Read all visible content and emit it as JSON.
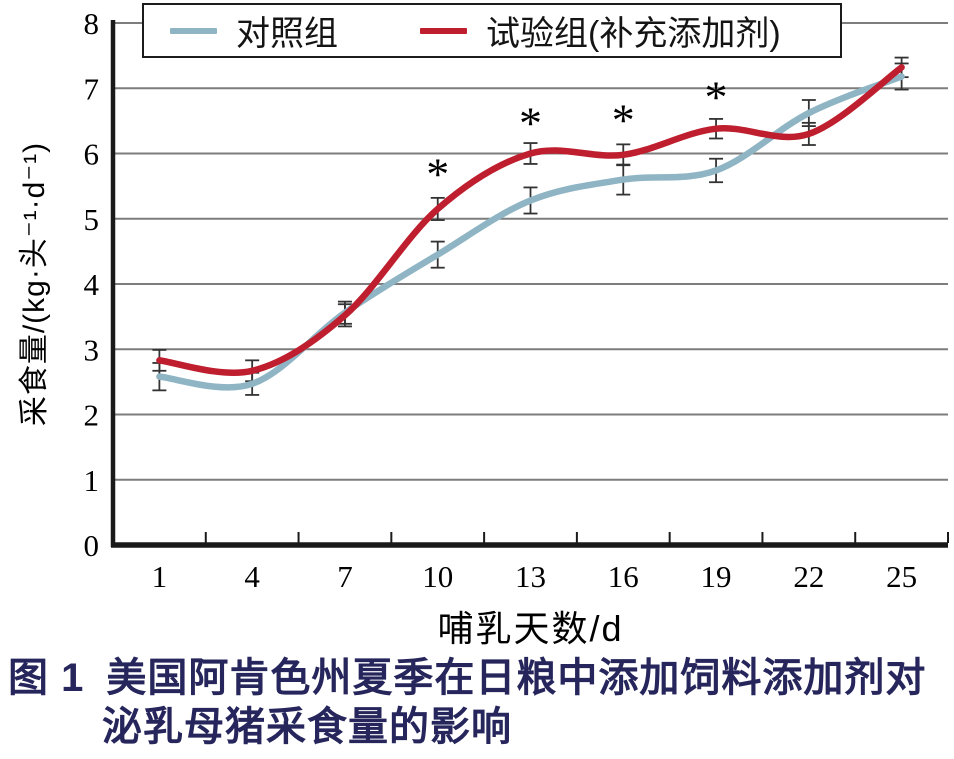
{
  "caption": {
    "prefix": "图 1",
    "line1": "美国阿肯色州夏季在日粮中添加饲料添加剂对",
    "line2": "泌乳母猪采食量的影响"
  },
  "style": {
    "axis_color": "#1a1a1a",
    "grid_color": "#7d7d7d",
    "error_bar_color": "#333333",
    "tick_label_color": "#000000",
    "caption_color": "#26265C",
    "background": "#ffffff"
  },
  "chart_data": {
    "type": "line",
    "title": "",
    "xlabel": "哺乳天数/d",
    "ylabel": "采食量/(kg·头⁻¹·d⁻¹)",
    "x_categories": [
      1,
      4,
      7,
      10,
      13,
      16,
      19,
      22,
      25
    ],
    "ylim": [
      0,
      8
    ],
    "yticks": [
      0,
      1,
      2,
      3,
      4,
      5,
      6,
      7,
      8
    ],
    "grid": "horizontal",
    "legend_position": "top-inside",
    "curve": "smooth",
    "series": [
      {
        "name": "对照组",
        "color": "#8FB5C5",
        "values": [
          2.58,
          2.47,
          3.56,
          4.45,
          5.28,
          5.6,
          5.74,
          6.62,
          7.18
        ],
        "errors": [
          0.21,
          0.17,
          0.17,
          0.2,
          0.2,
          0.23,
          0.18,
          0.2,
          0.2
        ]
      },
      {
        "name": "试验组(补充添加剂)",
        "color": "#BE1E2D",
        "values": [
          2.83,
          2.67,
          3.52,
          5.15,
          6.0,
          5.98,
          6.38,
          6.3,
          7.32
        ],
        "errors": [
          0.16,
          0.16,
          0.17,
          0.17,
          0.16,
          0.16,
          0.15,
          0.17,
          0.15
        ]
      }
    ],
    "annotations": [
      {
        "symbol": "*",
        "x": 10,
        "y": 5.77
      },
      {
        "symbol": "*",
        "x": 13,
        "y": 6.55
      },
      {
        "symbol": "*",
        "x": 16,
        "y": 6.6
      },
      {
        "symbol": "*",
        "x": 19,
        "y": 6.95
      }
    ]
  }
}
